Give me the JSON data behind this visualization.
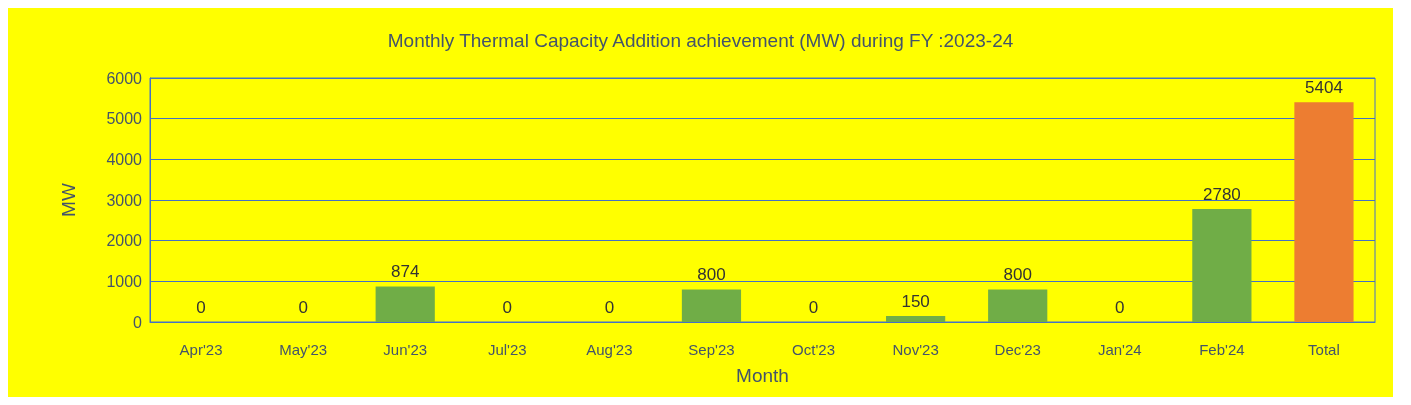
{
  "chart_data": {
    "type": "bar",
    "title": "Monthly Thermal Capacity Addition achievement (MW) during FY :2023-24",
    "xlabel": "Month",
    "ylabel": "MW",
    "categories": [
      "Apr'23",
      "May'23",
      "Jun'23",
      "Jul'23",
      "Aug'23",
      "Sep'23",
      "Oct'23",
      "Nov'23",
      "Dec'23",
      "Jan'24",
      "Feb'24",
      "Total"
    ],
    "values": [
      0,
      0,
      874,
      0,
      0,
      800,
      0,
      150,
      800,
      0,
      2780,
      5404
    ],
    "colors": [
      "#70ad47",
      "#70ad47",
      "#70ad47",
      "#70ad47",
      "#70ad47",
      "#70ad47",
      "#70ad47",
      "#70ad47",
      "#70ad47",
      "#70ad47",
      "#70ad47",
      "#ed7d31"
    ],
    "ylim": [
      0,
      6000
    ],
    "yticks": [
      0,
      1000,
      2000,
      3000,
      4000,
      5000,
      6000
    ],
    "grid": "y",
    "data_labels": true
  }
}
